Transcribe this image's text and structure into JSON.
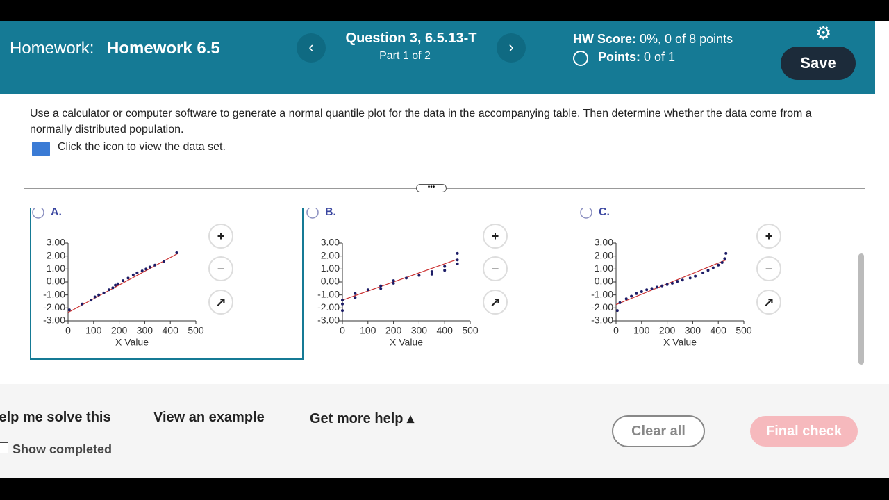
{
  "header": {
    "label": "Homework:",
    "title": "Homework 6.5",
    "question": "Question 3, 6.5.13-T",
    "part": "Part 1 of 2",
    "score_label": "HW Score:",
    "score": "0%, 0 of 8 points",
    "points_label": "Points:",
    "points": "0 of 1",
    "save": "Save"
  },
  "question": {
    "text": "Use a calculator or computer software to generate a normal quantile plot for the data in the accompanying table. Then determine whether the data come from a normally distributed population.",
    "data_link": "Click the icon to view the data set."
  },
  "options": [
    {
      "label": "A.",
      "chart": {
        "type": "scatter",
        "xlabel": "X Value",
        "xlim": [
          0,
          500
        ],
        "xticks": [
          0,
          100,
          200,
          300,
          400,
          500
        ],
        "ylim": [
          -3,
          3
        ],
        "yticks": [
          {
            "value": 3,
            "label": "3.00"
          },
          {
            "value": 2,
            "label": "2.00"
          },
          {
            "value": 1,
            "label": "1.00"
          },
          {
            "value": 0,
            "label": "0.00"
          },
          {
            "value": -1,
            "label": "-1.00"
          },
          {
            "value": -2,
            "label": "-2.00"
          },
          {
            "value": -3,
            "label": "-3.00"
          }
        ],
        "x": [
          5,
          55,
          90,
          105,
          120,
          140,
          160,
          175,
          185,
          195,
          215,
          235,
          255,
          270,
          290,
          305,
          320,
          340,
          375,
          425
        ],
        "y": [
          -2.15,
          -1.7,
          -1.4,
          -1.15,
          -1.0,
          -0.85,
          -0.6,
          -0.45,
          -0.25,
          -0.15,
          0.1,
          0.3,
          0.55,
          0.7,
          0.85,
          1.0,
          1.15,
          1.3,
          1.6,
          2.25
        ],
        "color": "#1c1c66",
        "fit_line": {
          "x": [
            0,
            430
          ],
          "y": [
            -2.35,
            2.2
          ],
          "color": "#cc3333"
        }
      }
    },
    {
      "label": "B.",
      "chart": {
        "type": "scatter",
        "xlabel": "X Value",
        "xlim": [
          0,
          500
        ],
        "xticks": [
          0,
          100,
          200,
          300,
          400,
          500
        ],
        "ylim": [
          -3,
          3
        ],
        "yticks": [
          {
            "value": 3,
            "label": "3.00"
          },
          {
            "value": 2,
            "label": "2.00"
          },
          {
            "value": 1,
            "label": "1.00"
          },
          {
            "value": 0,
            "label": "0.00"
          },
          {
            "value": -1,
            "label": "-1.00"
          },
          {
            "value": -2,
            "label": "-2.00"
          },
          {
            "value": -3,
            "label": "-3.00"
          }
        ],
        "x": [
          0,
          0,
          0,
          50,
          50,
          100,
          150,
          150,
          200,
          200,
          250,
          300,
          350,
          350,
          400,
          400,
          450,
          450,
          450
        ],
        "y": [
          -2.2,
          -1.7,
          -1.4,
          -1.2,
          -0.9,
          -0.6,
          -0.5,
          -0.3,
          -0.1,
          0.1,
          0.3,
          0.5,
          0.6,
          0.8,
          0.9,
          1.2,
          1.4,
          1.7,
          2.2
        ],
        "color": "#1c1c66",
        "fit_line": {
          "x": [
            0,
            450
          ],
          "y": [
            -1.4,
            1.75
          ],
          "color": "#cc3333"
        }
      }
    },
    {
      "label": "C.",
      "chart": {
        "type": "scatter",
        "xlabel": "X Value",
        "xlim": [
          0,
          500
        ],
        "xticks": [
          0,
          100,
          200,
          300,
          400,
          500
        ],
        "ylim": [
          -3,
          3
        ],
        "yticks": [
          {
            "value": 3,
            "label": "3.00"
          },
          {
            "value": 2,
            "label": "2.00"
          },
          {
            "value": 1,
            "label": "1.00"
          },
          {
            "value": 0,
            "label": "0.00"
          },
          {
            "value": -1,
            "label": "-1.00"
          },
          {
            "value": -2,
            "label": "-2.00"
          },
          {
            "value": -3,
            "label": "-3.00"
          }
        ],
        "x": [
          5,
          15,
          40,
          60,
          80,
          100,
          120,
          140,
          160,
          180,
          200,
          220,
          240,
          260,
          290,
          310,
          340,
          360,
          380,
          400,
          415,
          425,
          430
        ],
        "y": [
          -2.2,
          -1.6,
          -1.3,
          -1.1,
          -0.9,
          -0.75,
          -0.6,
          -0.5,
          -0.4,
          -0.3,
          -0.2,
          -0.1,
          0.05,
          0.15,
          0.3,
          0.45,
          0.7,
          0.9,
          1.1,
          1.3,
          1.5,
          1.8,
          2.2
        ],
        "color": "#1c1c66",
        "fit_line": {
          "x": [
            0,
            430
          ],
          "y": [
            -1.75,
            1.7
          ],
          "color": "#cc3333"
        }
      }
    }
  ],
  "footer": {
    "help": "Help me solve this",
    "example": "View an example",
    "more_help": "Get more help",
    "show_completed": "Show completed",
    "clear": "Clear all",
    "final": "Final check"
  }
}
